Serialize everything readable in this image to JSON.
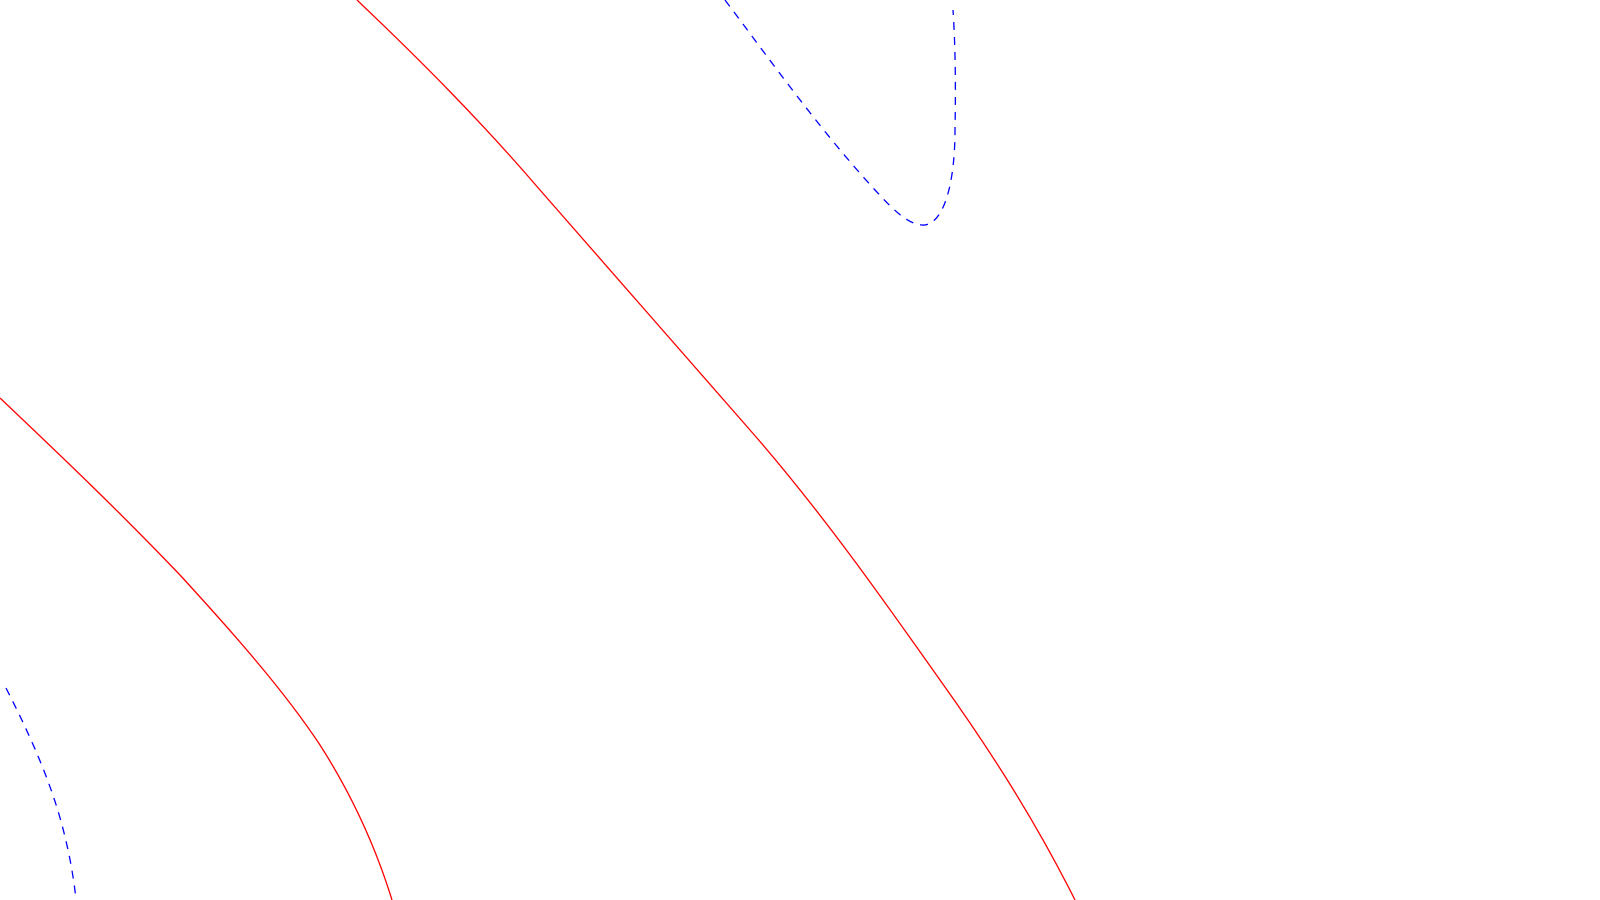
{
  "diagram": {
    "background": "#ffffff",
    "curves": [
      {
        "id": "red-curve-left",
        "style": "solid",
        "color": "#ff0000"
      },
      {
        "id": "red-curve-middle",
        "style": "solid",
        "color": "#ff0000"
      },
      {
        "id": "blue-dashed-curve-top",
        "style": "dashed",
        "color": "#0000ff"
      },
      {
        "id": "blue-dashed-curve-bottom-left",
        "style": "dashed",
        "color": "#0000ff"
      }
    ]
  }
}
